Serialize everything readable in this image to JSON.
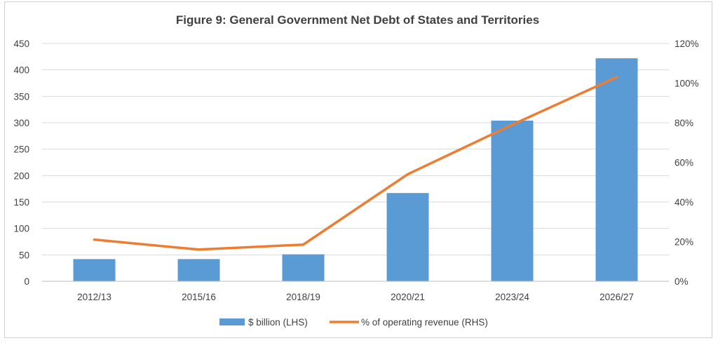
{
  "chart_data": {
    "type": "bar",
    "title": "Figure 9: General Government Net Debt of States and Territories",
    "categories": [
      "2012/13",
      "2015/16",
      "2018/19",
      "2020/21",
      "2023/24",
      "2026/27"
    ],
    "series": [
      {
        "name": "$ billion (LHS)",
        "type": "bar",
        "axis": "left",
        "values": [
          42,
          42,
          51,
          167,
          304,
          422
        ],
        "color": "#5B9BD5"
      },
      {
        "name": "% of operating revenue (RHS)",
        "type": "line",
        "axis": "right",
        "values": [
          21,
          16,
          18.5,
          54,
          79,
          103
        ],
        "color": "#ED7D31"
      }
    ],
    "y_left": {
      "min": 0,
      "max": 450,
      "step": 50,
      "tick_labels": [
        "0",
        "50",
        "100",
        "150",
        "200",
        "250",
        "300",
        "350",
        "400",
        "450"
      ]
    },
    "y_right": {
      "min": 0,
      "max": 120,
      "step": 20,
      "tick_labels": [
        "0%",
        "20%",
        "40%",
        "60%",
        "80%",
        "100%",
        "120%"
      ]
    },
    "xlabel": "",
    "ylabel": "",
    "grid": true,
    "legend_position": "bottom",
    "colors": {
      "gridline": "#d9d9d9",
      "axis": "#bfbfbf",
      "text": "#404040"
    }
  }
}
